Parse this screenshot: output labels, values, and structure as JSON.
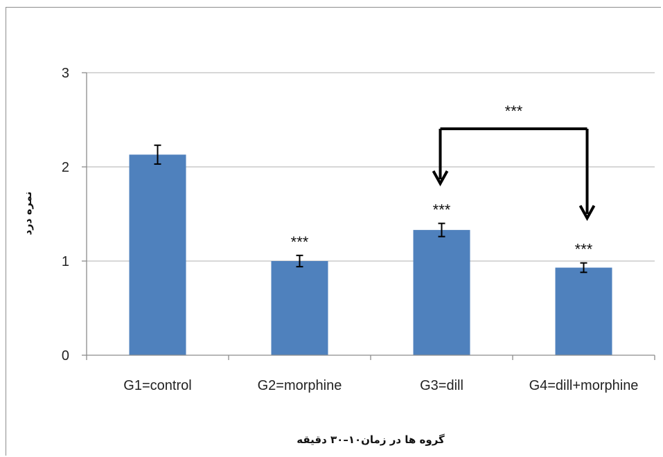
{
  "chart_data": {
    "type": "bar",
    "categories": [
      "G1=control",
      "G2=morphine",
      "G3=dill",
      "G4=dill+morphine"
    ],
    "values": [
      2.13,
      1.0,
      1.33,
      0.93
    ],
    "errors": [
      0.1,
      0.06,
      0.07,
      0.05
    ],
    "significance": [
      "",
      "***",
      "***",
      "***"
    ],
    "comparison": {
      "from": 2,
      "to": 3,
      "label": "***"
    },
    "xlabel": "گروه ها در زمان۱۰–۳۰ دقیقه",
    "ylabel": "نمره درد",
    "ylim": [
      0,
      3
    ],
    "yticks": [
      "0",
      "1",
      "2",
      "3"
    ],
    "grid": true,
    "colors": {
      "bar": "#4f81bd",
      "grid": "#bfbfbf",
      "axis": "#8c8c8c",
      "arrow": "#000000"
    }
  }
}
